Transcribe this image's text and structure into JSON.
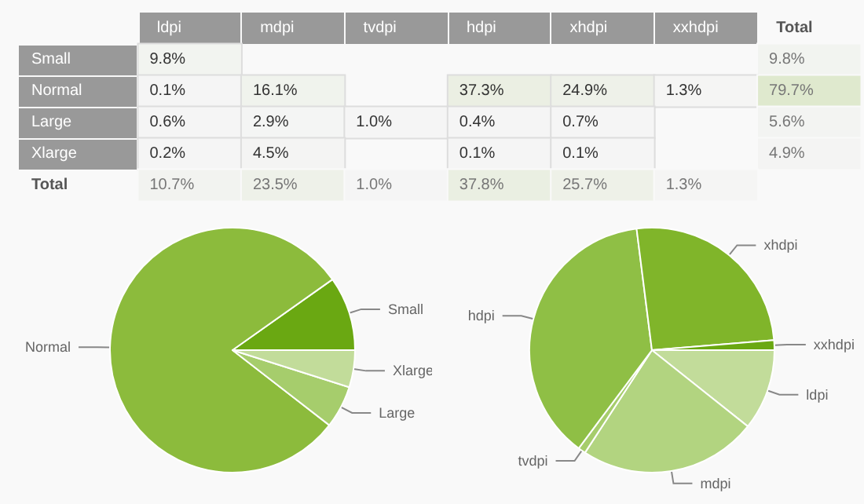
{
  "chart_data": [
    {
      "type": "heatmap",
      "categories": [
        "ldpi",
        "mdpi",
        "tvdpi",
        "hdpi",
        "xhdpi",
        "xxhdpi",
        "Total"
      ],
      "y_categories": [
        "Small",
        "Normal",
        "Large",
        "Xlarge",
        "Total"
      ],
      "cells": [
        [
          9.8,
          null,
          null,
          null,
          null,
          null,
          9.8
        ],
        [
          0.1,
          16.1,
          null,
          37.3,
          24.9,
          1.3,
          79.7
        ],
        [
          0.6,
          2.9,
          1.0,
          0.4,
          0.7,
          null,
          5.6
        ],
        [
          0.2,
          4.5,
          null,
          0.1,
          0.1,
          null,
          4.9
        ],
        [
          10.7,
          23.5,
          1.0,
          37.8,
          25.7,
          1.3,
          null
        ]
      ],
      "cell_labels": [
        [
          "9.8%",
          null,
          null,
          null,
          null,
          null,
          "9.8%"
        ],
        [
          "0.1%",
          "16.1%",
          null,
          "37.3%",
          "24.9%",
          "1.3%",
          "79.7%"
        ],
        [
          "0.6%",
          "2.9%",
          "1.0%",
          "0.4%",
          "0.7%",
          null,
          "5.6%"
        ],
        [
          "0.2%",
          "4.5%",
          null,
          "0.1%",
          "0.1%",
          null,
          "4.9%"
        ],
        [
          "10.7%",
          "23.5%",
          "1.0%",
          "37.8%",
          "25.7%",
          "1.3%",
          null
        ]
      ]
    },
    {
      "type": "pie",
      "categories": [
        "Small",
        "Normal",
        "Large",
        "Xlarge"
      ],
      "values": [
        9.8,
        79.7,
        5.6,
        4.9
      ],
      "colors": [
        "#6aa812",
        "#8cbb3c",
        "#a6cd6c",
        "#c2dc9a"
      ]
    },
    {
      "type": "pie",
      "categories": [
        "ldpi",
        "mdpi",
        "tvdpi",
        "hdpi",
        "xhdpi",
        "xxhdpi"
      ],
      "values": [
        10.7,
        23.5,
        1.0,
        37.8,
        25.7,
        1.3
      ],
      "colors": [
        "#c2dc9a",
        "#b2d480",
        "#a6cd6c",
        "#8fbf45",
        "#80b52a",
        "#6aa812"
      ]
    }
  ]
}
